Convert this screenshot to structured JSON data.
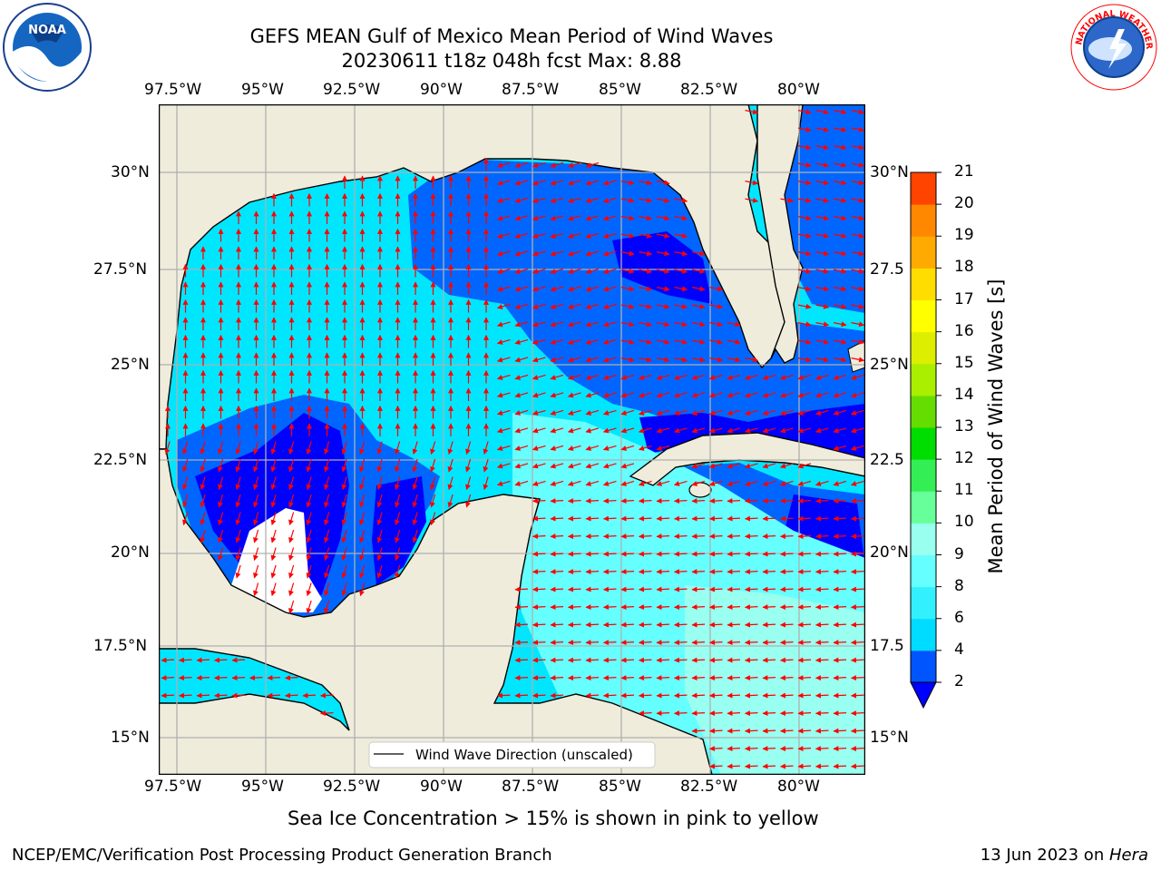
{
  "header": {
    "title_line1": "GEFS MEAN Gulf of Mexico Mean Period of Wind Waves",
    "title_line2": "20230611 t18z 048h fcst   Max: 8.88"
  },
  "logos": {
    "left": {
      "text": "NOAA",
      "icon": "noaa-logo"
    },
    "right": {
      "text": "NATIONAL WEATHER SERVICE",
      "icon": "nws-logo"
    }
  },
  "map": {
    "lon_ticks": [
      "97.5°W",
      "95°W",
      "92.5°W",
      "90°W",
      "87.5°W",
      "85°W",
      "82.5°W",
      "80°W"
    ],
    "lat_ticks_left": [
      "30°N",
      "27.5°N",
      "25°N",
      "22.5°N",
      "20°N",
      "17.5°N",
      "15°N"
    ],
    "lat_ticks_right": [
      "30°N",
      "27.5",
      "25°N",
      "22.5",
      "20°N",
      "17.5",
      "15°N"
    ],
    "legend_label": "Wind Wave Direction (unscaled)",
    "land_color": "#efecdc",
    "arrow_color": "#ff0000"
  },
  "colorbar": {
    "label": "Mean Period of Wind Waves [s]",
    "ticks": [
      "2",
      "4",
      "6",
      "8",
      "9",
      "10",
      "11",
      "12",
      "13",
      "14",
      "15",
      "16",
      "17",
      "18",
      "19",
      "20",
      "21"
    ],
    "colors": [
      "#0055ff",
      "#00dcff",
      "#33f0ff",
      "#66ffff",
      "#99ffee",
      "#66ff99",
      "#33ee55",
      "#00dd00",
      "#66dd00",
      "#aaee00",
      "#ddee00",
      "#ffff00",
      "#ffdd00",
      "#ffaa00",
      "#ff8800",
      "#ff4400",
      "#ff0000"
    ],
    "under_color": "#0000ff"
  },
  "notes": {
    "sea_ice": "Sea Ice Concentration > 15% is shown in pink to yellow"
  },
  "footer": {
    "left": "NCEP/EMC/Verification Post Processing Product Generation Branch",
    "right_prefix": "13 Jun 2023 on ",
    "right_machine": "Hera"
  }
}
